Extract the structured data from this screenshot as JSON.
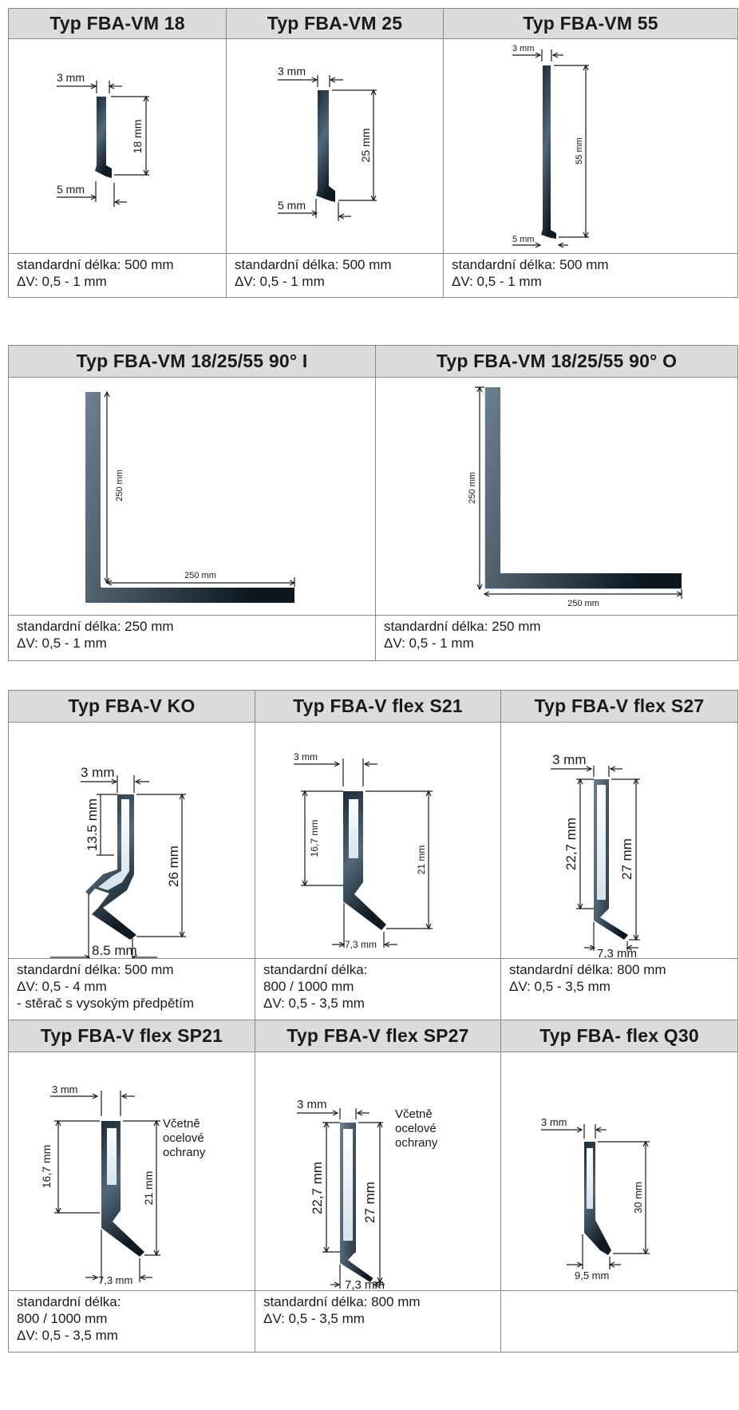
{
  "sections": [
    {
      "products": [
        {
          "title": "Typ FBA-VM 18",
          "dims": [
            "3 mm",
            "18 mm",
            "5 mm"
          ],
          "lines": [
            "standardní délka: 500 mm",
            "ΔV:  0,5 - 1 mm"
          ]
        },
        {
          "title": "Typ FBA-VM 25",
          "dims": [
            "3 mm",
            "25 mm",
            "5 mm"
          ],
          "lines": [
            "standardní délka: 500 mm",
            "ΔV:  0,5 - 1 mm"
          ]
        },
        {
          "title": "Typ FBA-VM 55",
          "dims": [
            "3 mm",
            "55 mm",
            "5 mm"
          ],
          "lines": [
            "standardní délka: 500 mm",
            "ΔV:  0,5 - 1 mm"
          ]
        }
      ]
    },
    {
      "products": [
        {
          "title": "Typ FBA-VM 18/25/55 90° I",
          "dims": [
            "250 mm",
            "250 mm"
          ],
          "lines": [
            "standardní délka: 250 mm",
            "ΔV:  0,5 - 1 mm"
          ]
        },
        {
          "title": "Typ FBA-VM 18/25/55 90° O",
          "dims": [
            "250 mm",
            "250 mm"
          ],
          "lines": [
            "standardní délka: 250 mm",
            "ΔV:  0,5 - 1 mm"
          ]
        }
      ]
    },
    {
      "products": [
        {
          "title": "Typ FBA-V KO",
          "dims": [
            "3 mm",
            "13.5 mm",
            "26 mm",
            "8.5 mm"
          ],
          "lines": [
            "standardní délka: 500 mm",
            "ΔV:  0,5 - 4 mm",
            "- stěrač s vysokým předpětím"
          ]
        },
        {
          "title": "Typ FBA-V flex S21",
          "dims": [
            "3 mm",
            "16,7 mm",
            "21 mm",
            "7,3 mm"
          ],
          "lines": [
            "standardní délka:",
            "800 / 1000 mm",
            "ΔV:  0,5 - 3,5 mm"
          ]
        },
        {
          "title": "Typ FBA-V flex S27",
          "dims": [
            "3 mm",
            "22,7 mm",
            "27 mm",
            "7,3 mm"
          ],
          "lines": [
            "standardní délka: 800 mm",
            "ΔV:  0,5 - 3,5 mm"
          ]
        }
      ]
    },
    {
      "products": [
        {
          "title": "Typ FBA-V flex SP21",
          "dims": [
            "3 mm",
            "16,7 mm",
            "21 mm",
            "7,3 mm"
          ],
          "note": [
            "Včetně",
            "ocelové",
            "ochrany"
          ],
          "lines": [
            "standardní délka:",
            "800 / 1000 mm",
            "ΔV:  0,5 - 3,5 mm"
          ]
        },
        {
          "title": "Typ FBA-V flex SP27",
          "dims": [
            "3 mm",
            "22,7 mm",
            "27 mm",
            "7,3 mm"
          ],
          "note": [
            "Včetně",
            "ocelové",
            "ochrany"
          ],
          "lines": [
            "standardní délka: 800 mm",
            "ΔV:  0,5 - 3,5 mm"
          ]
        },
        {
          "title": "Typ FBA- flex Q30",
          "dims": [
            "3 mm",
            "30 mm",
            "9,5 mm",
            ":"
          ],
          "lines": []
        }
      ]
    }
  ]
}
